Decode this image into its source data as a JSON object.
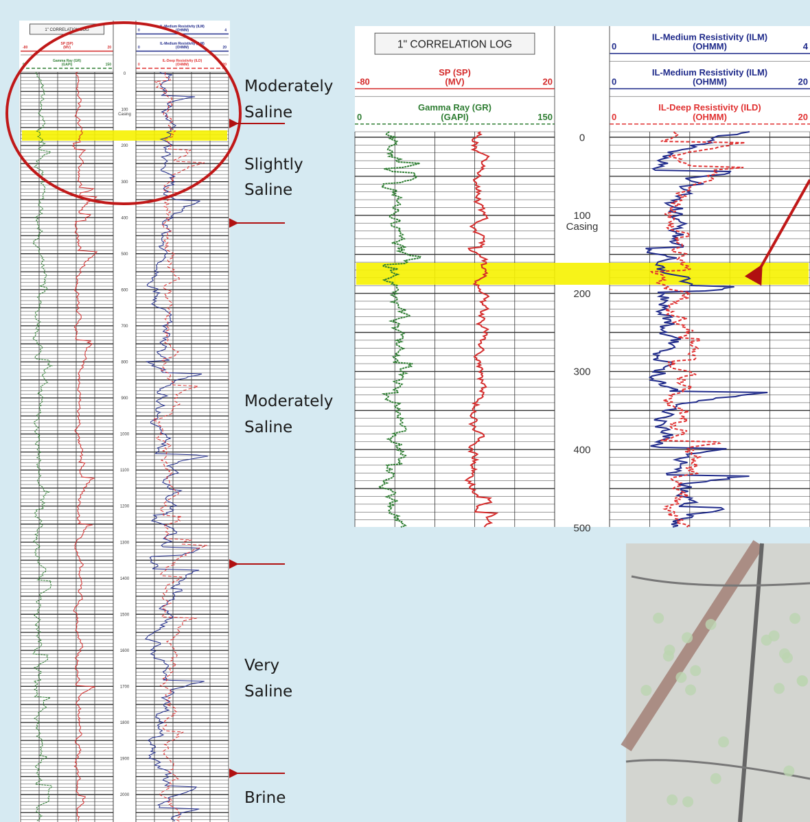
{
  "zones": [
    {
      "lines": [
        "Moderately",
        "Saline"
      ]
    },
    {
      "lines": [
        "Slightly",
        "Saline"
      ]
    },
    {
      "lines": [
        "Moderately",
        "Saline"
      ]
    },
    {
      "lines": [
        "Very",
        "Saline"
      ]
    },
    {
      "lines": [
        "Brine"
      ]
    }
  ],
  "overview_log": {
    "header": {
      "title": "1\" CORRELATION LOG",
      "left_tracks": [
        {
          "name": "SP (SP)",
          "unit": "(MV)",
          "min": -80,
          "max": 20
        },
        {
          "name": "Gamma Ray (GR)",
          "unit": "(GAPI)",
          "min": 0,
          "max": 150
        }
      ],
      "right_tracks": [
        {
          "name": "IL-Medium Resistivity (ILM)",
          "unit": "(OHMM)",
          "min": 0,
          "max": 4
        },
        {
          "name": "IL-Medium Resistivity (ILM)",
          "unit": "(OHMM)",
          "min": 0,
          "max": 20
        },
        {
          "name": "IL-Deep Resistivity (ILD)",
          "unit": "(OHMM)",
          "min": 0,
          "max": 20
        }
      ]
    },
    "depths": [
      0,
      100,
      200,
      300,
      400,
      500,
      600,
      700,
      800,
      900,
      1000,
      1100,
      1200,
      1300,
      1400,
      1500,
      1600,
      1700,
      1800,
      1900,
      2000
    ],
    "casing_label": "Casing"
  },
  "detail_log": {
    "header": {
      "title": "1\" CORRELATION LOG",
      "left_tracks": [
        {
          "name": "SP (SP)",
          "unit": "(MV)",
          "min": -80,
          "max": 20
        },
        {
          "name": "Gamma Ray (GR)",
          "unit": "(GAPI)",
          "min": 0,
          "max": 150
        }
      ],
      "right_tracks": [
        {
          "name": "IL-Medium Resistivity (ILM)",
          "unit": "(OHMM)",
          "min": 0,
          "max": 4
        },
        {
          "name": "IL-Medium Resistivity (ILM)",
          "unit": "(OHMM)",
          "min": 0,
          "max": 20
        },
        {
          "name": "IL-Deep Resistivity (ILD)",
          "unit": "(OHMM)",
          "min": 0,
          "max": 20
        }
      ]
    },
    "depths": [
      0,
      100,
      200,
      300,
      400,
      500
    ],
    "casing_label": "Casing"
  }
}
